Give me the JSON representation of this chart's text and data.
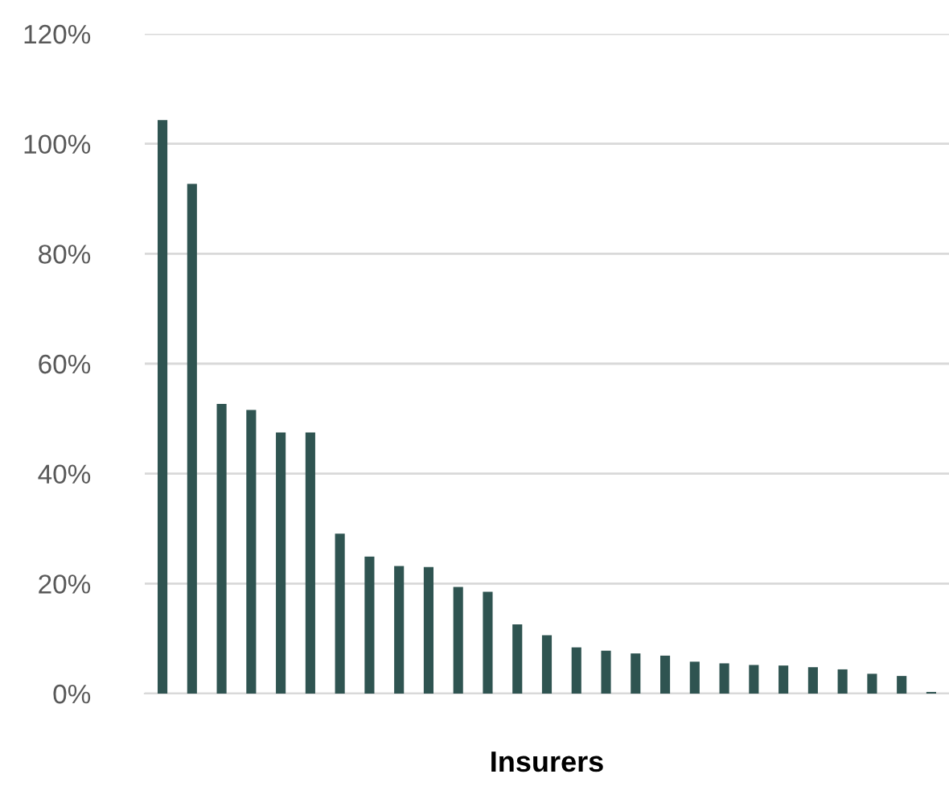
{
  "chart_data": {
    "type": "bar",
    "xlabel": "Insurers",
    "categories": [
      null,
      null,
      null,
      null,
      null,
      null,
      null,
      null,
      null,
      null,
      null,
      null,
      null,
      null,
      null,
      null,
      null,
      null,
      null,
      null,
      null,
      null,
      null,
      null,
      null,
      null,
      null
    ],
    "values": [
      104.3,
      92.7,
      52.7,
      51.6,
      47.5,
      47.5,
      29.1,
      24.9,
      23.2,
      23.0,
      19.4,
      18.5,
      12.6,
      10.6,
      8.4,
      7.8,
      7.3,
      6.9,
      5.8,
      5.5,
      5.2,
      5.1,
      4.8,
      4.4,
      3.6,
      3.2,
      0.3
    ],
    "color": "#2f5451",
    "ylim": [
      0,
      120
    ],
    "yticks": [
      {
        "value": 0,
        "label": "0%"
      },
      {
        "value": 20,
        "label": "20%"
      },
      {
        "value": 40,
        "label": "40%"
      },
      {
        "value": 60,
        "label": "60%"
      },
      {
        "value": 80,
        "label": "80%"
      },
      {
        "value": 100,
        "label": "100%"
      },
      {
        "value": 120,
        "label": "120%"
      }
    ],
    "grid": "y"
  }
}
